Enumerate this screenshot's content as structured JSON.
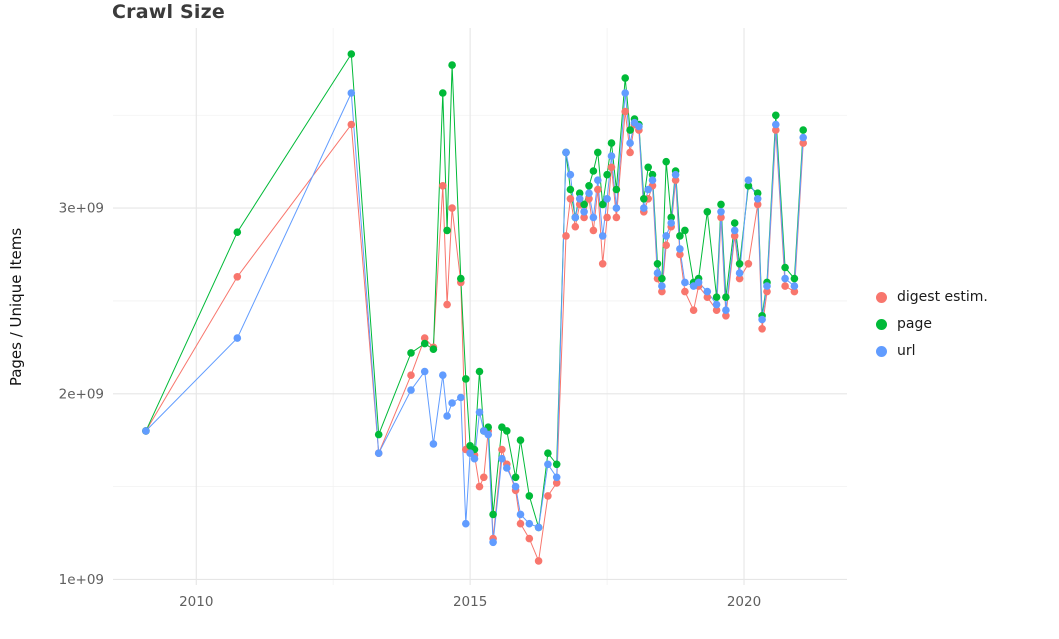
{
  "chart_data": {
    "type": "line",
    "title": "Crawl Size",
    "xlabel": "",
    "ylabel": "Pages / Unique Items",
    "legend_position": "right",
    "grid": "on",
    "y_unit": "1e9",
    "x_range": [
      2008.48,
      2021.88
    ],
    "y_range": [
      0.97,
      3.97
    ],
    "x_ticks": [
      {
        "v": 2010,
        "label": "2010"
      },
      {
        "v": 2015,
        "label": "2015"
      },
      {
        "v": 2020,
        "label": "2020"
      }
    ],
    "y_ticks": [
      {
        "v": 1,
        "label": "1e+09"
      },
      {
        "v": 2,
        "label": "2e+09"
      },
      {
        "v": 3,
        "label": "3e+09"
      }
    ],
    "x_grid_minor": [
      2012.5,
      2017.5
    ],
    "y_grid_minor": [
      1.5,
      2.5,
      3.5
    ],
    "x": [
      2009.08,
      2010.75,
      2012.83,
      2013.33,
      2013.92,
      2014.17,
      2014.33,
      2014.5,
      2014.58,
      2014.67,
      2014.83,
      2014.92,
      2015.0,
      2015.08,
      2015.17,
      2015.25,
      2015.33,
      2015.42,
      2015.58,
      2015.67,
      2015.83,
      2015.92,
      2016.08,
      2016.25,
      2016.42,
      2016.58,
      2016.75,
      2016.83,
      2016.92,
      2017.0,
      2017.08,
      2017.17,
      2017.25,
      2017.33,
      2017.42,
      2017.5,
      2017.58,
      2017.67,
      2017.83,
      2017.92,
      2018.0,
      2018.08,
      2018.17,
      2018.25,
      2018.33,
      2018.42,
      2018.5,
      2018.58,
      2018.67,
      2018.75,
      2018.83,
      2018.92,
      2019.08,
      2019.17,
      2019.33,
      2019.5,
      2019.58,
      2019.67,
      2019.83,
      2019.92,
      2020.08,
      2020.25,
      2020.33,
      2020.42,
      2020.58,
      2020.75,
      2020.92,
      2021.08
    ],
    "series": [
      {
        "name": "digest estim.",
        "color": "#F8766D",
        "values": [
          1.8,
          2.63,
          3.45,
          1.68,
          2.1,
          2.3,
          2.25,
          3.12,
          2.48,
          3.0,
          2.6,
          1.7,
          1.7,
          1.67,
          1.5,
          1.55,
          1.8,
          1.22,
          1.7,
          1.62,
          1.48,
          1.3,
          1.22,
          1.1,
          1.45,
          1.52,
          2.85,
          3.05,
          2.9,
          3.02,
          2.95,
          3.05,
          2.88,
          3.1,
          2.7,
          2.95,
          3.22,
          2.95,
          3.52,
          3.3,
          3.45,
          3.42,
          2.98,
          3.05,
          3.12,
          2.62,
          2.55,
          2.8,
          2.9,
          3.15,
          2.75,
          2.55,
          2.45,
          2.58,
          2.52,
          2.45,
          2.95,
          2.42,
          2.85,
          2.62,
          2.7,
          3.02,
          2.35,
          2.55,
          3.42,
          2.58,
          2.55,
          3.35
        ]
      },
      {
        "name": "page",
        "color": "#00BA38",
        "values": [
          1.8,
          2.87,
          3.83,
          1.78,
          2.22,
          2.27,
          2.24,
          3.62,
          2.88,
          3.77,
          2.62,
          2.08,
          1.72,
          1.7,
          2.12,
          1.8,
          1.82,
          1.35,
          1.82,
          1.8,
          1.55,
          1.75,
          1.45,
          1.28,
          1.68,
          1.62,
          3.3,
          3.1,
          2.95,
          3.08,
          3.02,
          3.12,
          3.2,
          3.3,
          3.02,
          3.18,
          3.35,
          3.1,
          3.7,
          3.42,
          3.48,
          3.45,
          3.05,
          3.22,
          3.18,
          2.7,
          2.62,
          3.25,
          2.95,
          3.2,
          2.85,
          2.88,
          2.6,
          2.62,
          2.98,
          2.52,
          3.02,
          2.52,
          2.92,
          2.7,
          3.12,
          3.08,
          2.42,
          2.6,
          3.5,
          2.68,
          2.62,
          3.42
        ]
      },
      {
        "name": "url",
        "color": "#619CFF",
        "values": [
          1.8,
          2.3,
          3.62,
          1.68,
          2.02,
          2.12,
          1.73,
          2.1,
          1.88,
          1.95,
          1.98,
          1.3,
          1.68,
          1.65,
          1.9,
          1.8,
          1.78,
          1.2,
          1.65,
          1.6,
          1.5,
          1.35,
          1.3,
          1.28,
          1.62,
          1.55,
          3.3,
          3.18,
          2.95,
          3.05,
          2.98,
          3.08,
          2.95,
          3.15,
          2.85,
          3.05,
          3.28,
          3.0,
          3.62,
          3.35,
          3.46,
          3.44,
          3.0,
          3.1,
          3.15,
          2.65,
          2.58,
          2.85,
          2.92,
          3.18,
          2.78,
          2.6,
          2.58,
          2.6,
          2.55,
          2.48,
          2.98,
          2.45,
          2.88,
          2.65,
          3.15,
          3.05,
          2.4,
          2.58,
          3.45,
          2.62,
          2.58,
          3.38
        ]
      }
    ]
  }
}
